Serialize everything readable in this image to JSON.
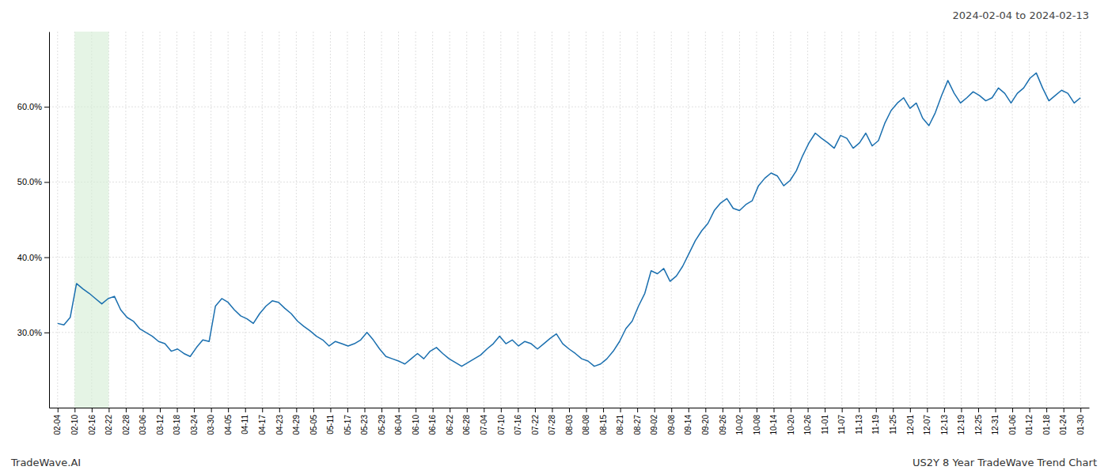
{
  "chart_data": {
    "type": "line",
    "title": "2024-02-04 to 2024-02-13",
    "annotations": [
      "TradeWave.AI",
      "US2Y 8 Year TradeWave Trend Chart"
    ],
    "color": "#1a6faf",
    "grid": true,
    "shaded_region": {
      "x_start": 2.7,
      "x_end": 8.1,
      "color": "#d4ecd4"
    },
    "xlim": [
      -1.35,
      163.35
    ],
    "xticks": [
      {
        "value": 0,
        "label": "02-04"
      },
      {
        "value": 2.7,
        "label": "02-10"
      },
      {
        "value": 5.4,
        "label": "02-16"
      },
      {
        "value": 8.1,
        "label": "02-22"
      },
      {
        "value": 10.8,
        "label": "02-28"
      },
      {
        "value": 13.5,
        "label": "03-06"
      },
      {
        "value": 16.2,
        "label": "03-12"
      },
      {
        "value": 18.9,
        "label": "03-18"
      },
      {
        "value": 21.6,
        "label": "03-24"
      },
      {
        "value": 24.3,
        "label": "03-30"
      },
      {
        "value": 27,
        "label": "04-05"
      },
      {
        "value": 29.7,
        "label": "04-11"
      },
      {
        "value": 32.4,
        "label": "04-17"
      },
      {
        "value": 35.1,
        "label": "04-23"
      },
      {
        "value": 37.8,
        "label": "04-29"
      },
      {
        "value": 40.5,
        "label": "05-05"
      },
      {
        "value": 43.2,
        "label": "05-11"
      },
      {
        "value": 45.9,
        "label": "05-17"
      },
      {
        "value": 48.6,
        "label": "05-23"
      },
      {
        "value": 51.3,
        "label": "05-29"
      },
      {
        "value": 54,
        "label": "06-04"
      },
      {
        "value": 56.7,
        "label": "06-10"
      },
      {
        "value": 59.4,
        "label": "06-16"
      },
      {
        "value": 62.1,
        "label": "06-22"
      },
      {
        "value": 64.8,
        "label": "06-28"
      },
      {
        "value": 67.5,
        "label": "07-04"
      },
      {
        "value": 70.2,
        "label": "07-10"
      },
      {
        "value": 72.9,
        "label": "07-16"
      },
      {
        "value": 75.6,
        "label": "07-22"
      },
      {
        "value": 78.3,
        "label": "07-28"
      },
      {
        "value": 81,
        "label": "08-03"
      },
      {
        "value": 83.7,
        "label": "08-08"
      },
      {
        "value": 86.4,
        "label": "08-15"
      },
      {
        "value": 89.1,
        "label": "08-21"
      },
      {
        "value": 91.8,
        "label": "08-27"
      },
      {
        "value": 94.5,
        "label": "09-02"
      },
      {
        "value": 97.2,
        "label": "09-08"
      },
      {
        "value": 99.9,
        "label": "09-14"
      },
      {
        "value": 102.6,
        "label": "09-20"
      },
      {
        "value": 105.3,
        "label": "09-26"
      },
      {
        "value": 108,
        "label": "10-02"
      },
      {
        "value": 110.7,
        "label": "10-08"
      },
      {
        "value": 113.4,
        "label": "10-14"
      },
      {
        "value": 116.1,
        "label": "10-20"
      },
      {
        "value": 118.8,
        "label": "10-26"
      },
      {
        "value": 121.5,
        "label": "11-01"
      },
      {
        "value": 124.2,
        "label": "11-07"
      },
      {
        "value": 126.9,
        "label": "11-13"
      },
      {
        "value": 129.6,
        "label": "11-19"
      },
      {
        "value": 132.3,
        "label": "11-25"
      },
      {
        "value": 135,
        "label": "12-01"
      },
      {
        "value": 137.7,
        "label": "12-07"
      },
      {
        "value": 140.4,
        "label": "12-13"
      },
      {
        "value": 143.1,
        "label": "12-19"
      },
      {
        "value": 145.8,
        "label": "12-25"
      },
      {
        "value": 148.5,
        "label": "12-31"
      },
      {
        "value": 151.2,
        "label": "01-06"
      },
      {
        "value": 153.9,
        "label": "01-12"
      },
      {
        "value": 156.6,
        "label": "01-18"
      },
      {
        "value": 159.3,
        "label": "01-24"
      },
      {
        "value": 162,
        "label": "01-30"
      }
    ],
    "ylim": [
      20.0,
      70.0
    ],
    "yticks": [
      {
        "value": 30.0,
        "label": "30.0%"
      },
      {
        "value": 40.0,
        "label": "40.0%"
      },
      {
        "value": 50.0,
        "label": "50.0%"
      },
      {
        "value": 60.0,
        "label": "60.0%"
      }
    ],
    "x": [
      0,
      1,
      2,
      3,
      4,
      5,
      6,
      7,
      8,
      9,
      10,
      11,
      12,
      13,
      14,
      15,
      16,
      17,
      18,
      19,
      20,
      21,
      22,
      23,
      24,
      25,
      26,
      27,
      28,
      29,
      30,
      31,
      32,
      33,
      34,
      35,
      36,
      37,
      38,
      39,
      40,
      41,
      42,
      43,
      44,
      45,
      46,
      47,
      48,
      49,
      50,
      51,
      52,
      53,
      54,
      55,
      56,
      57,
      58,
      59,
      60,
      61,
      62,
      63,
      64,
      65,
      66,
      67,
      68,
      69,
      70,
      71,
      72,
      73,
      74,
      75,
      76,
      77,
      78,
      79,
      80,
      81,
      82,
      83,
      84,
      85,
      86,
      87,
      88,
      89,
      90,
      91,
      92,
      93,
      94,
      95,
      96,
      97,
      98,
      99,
      100,
      101,
      102,
      103,
      104,
      105,
      106,
      107,
      108,
      109,
      110,
      111,
      112,
      113,
      114,
      115,
      116,
      117,
      118,
      119,
      120,
      121,
      122,
      123,
      124,
      125,
      126,
      127,
      128,
      129,
      130,
      131,
      132,
      133,
      134,
      135,
      136,
      137,
      138,
      139,
      140,
      141,
      142,
      143,
      144,
      145,
      146,
      147,
      148,
      149,
      150,
      151,
      152,
      153,
      154,
      155,
      156,
      157,
      158,
      159,
      160,
      161,
      162
    ],
    "values": [
      31.2,
      31.0,
      32.0,
      36.5,
      35.8,
      35.2,
      34.5,
      33.8,
      34.5,
      34.8,
      33.0,
      32.0,
      31.5,
      30.5,
      30.0,
      29.5,
      28.8,
      28.5,
      27.5,
      27.8,
      27.2,
      26.8,
      28.0,
      29.0,
      28.8,
      33.5,
      34.5,
      34.0,
      33.0,
      32.2,
      31.8,
      31.2,
      32.5,
      33.5,
      34.2,
      34.0,
      33.2,
      32.5,
      31.5,
      30.8,
      30.2,
      29.5,
      29.0,
      28.2,
      28.8,
      28.5,
      28.2,
      28.5,
      29.0,
      30.0,
      29.0,
      27.8,
      26.8,
      26.5,
      26.2,
      25.8,
      26.5,
      27.2,
      26.5,
      27.5,
      28.0,
      27.2,
      26.5,
      26.0,
      25.5,
      26.0,
      26.5,
      27.0,
      27.8,
      28.5,
      29.5,
      28.5,
      29.0,
      28.2,
      28.8,
      28.5,
      27.8,
      28.5,
      29.2,
      29.8,
      28.5,
      27.8,
      27.2,
      26.5,
      26.2,
      25.5,
      25.8,
      26.5,
      27.5,
      28.8,
      30.5,
      31.5,
      33.5,
      35.2,
      38.2,
      37.8,
      38.5,
      36.8,
      37.5,
      38.8,
      40.5,
      42.2,
      43.5,
      44.5,
      46.2,
      47.2,
      47.8,
      46.5,
      46.2,
      47.0,
      47.5,
      49.5,
      50.5,
      51.2,
      50.8,
      49.5,
      50.2,
      51.5,
      53.5,
      55.2,
      56.5,
      55.8,
      55.2,
      54.5,
      56.2,
      55.8,
      54.5,
      55.2,
      56.5,
      54.8,
      55.5,
      57.8,
      59.5,
      60.5,
      61.2,
      59.8,
      60.5,
      58.5,
      57.5,
      59.2,
      61.5,
      63.5,
      61.8,
      60.5,
      61.2,
      62.0,
      61.5,
      60.8,
      61.2,
      62.5,
      61.8,
      60.5,
      61.8,
      62.5,
      63.8,
      64.5,
      62.5,
      60.8,
      61.5,
      62.2,
      61.8,
      60.5,
      61.2
    ]
  }
}
